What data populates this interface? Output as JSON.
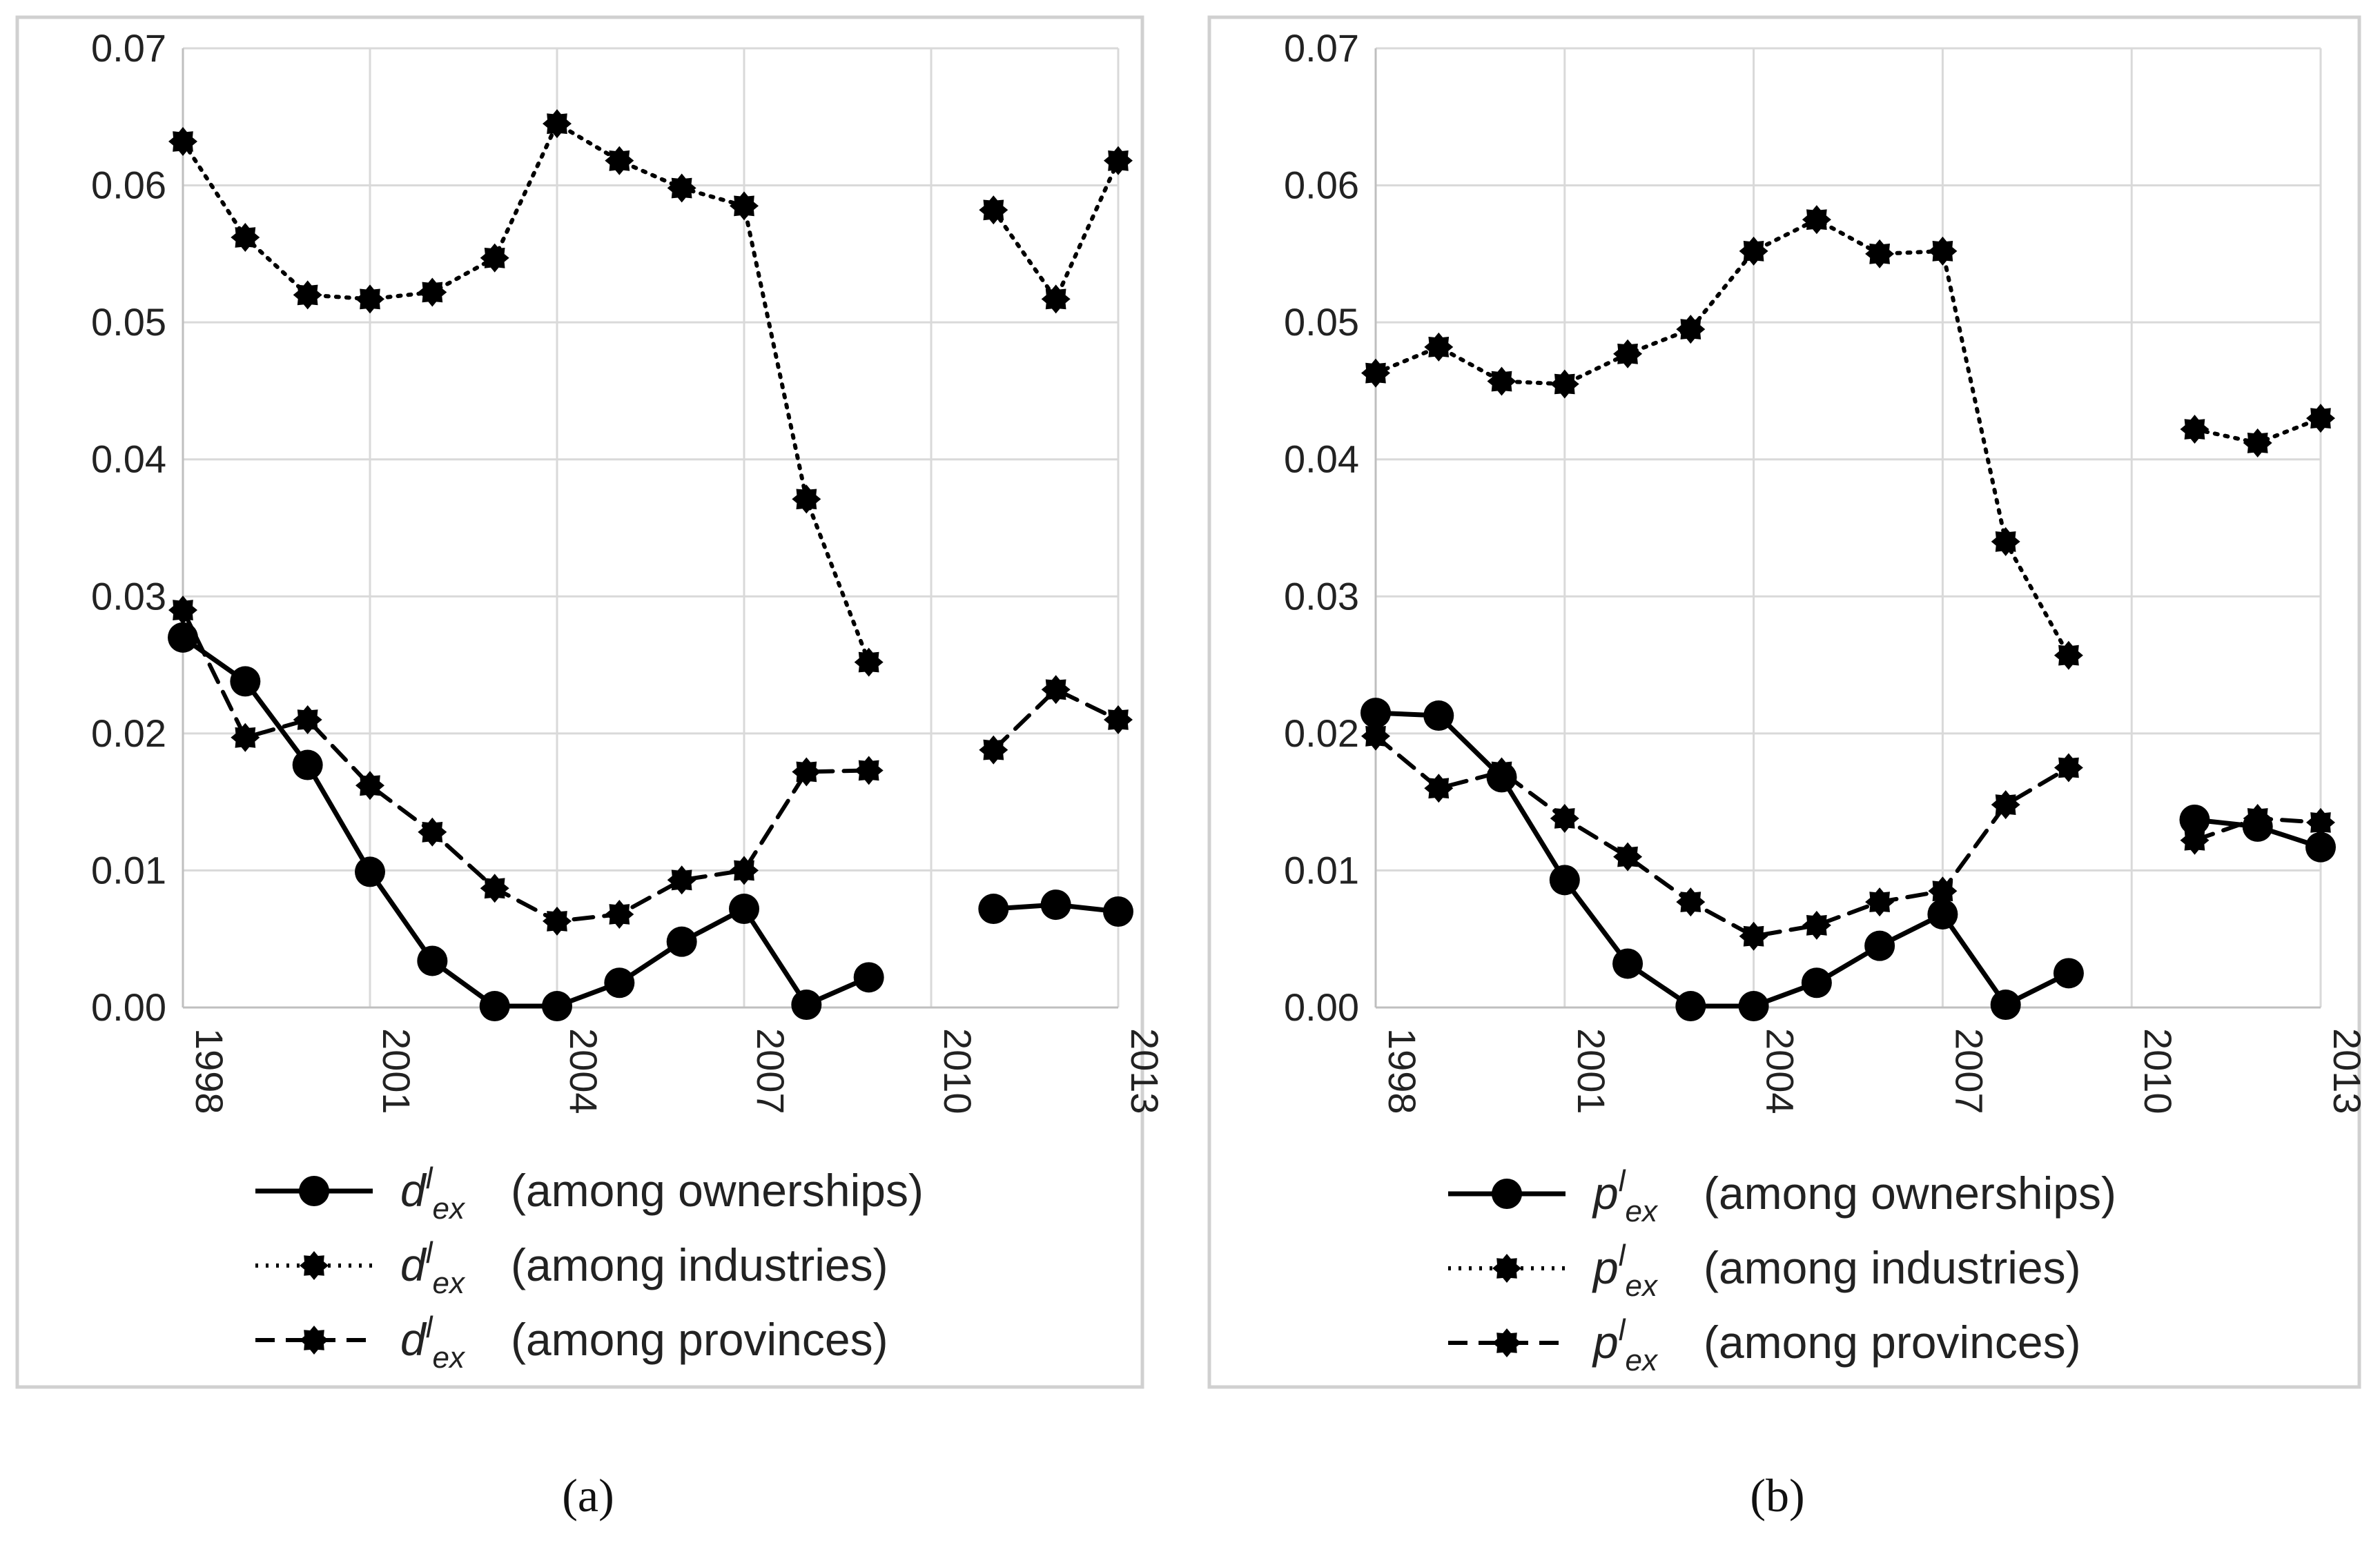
{
  "chart_data": [
    {
      "type": "line",
      "panel_label": "(a)",
      "x": [
        1998,
        1999,
        2000,
        2001,
        2002,
        2003,
        2004,
        2005,
        2006,
        2007,
        2008,
        2009,
        2010,
        2011,
        2012,
        2013
      ],
      "x_ticks": [
        "1998",
        "2001",
        "2004",
        "2007",
        "2010",
        "2013"
      ],
      "y_ticks": [
        "0.00",
        "0.01",
        "0.02",
        "0.03",
        "0.04",
        "0.05",
        "0.06",
        "0.07"
      ],
      "ylim": [
        0,
        0.07
      ],
      "xlim": [
        1998,
        2013
      ],
      "grid": true,
      "legend_position": "bottom",
      "series": [
        {
          "symbol": "d",
          "superscript": "l",
          "subscript": "ex",
          "name": "(among ownerships)",
          "style": "solid",
          "marker": "circle",
          "values": [
            0.027,
            0.0238,
            0.0177,
            0.0099,
            0.0034,
            0.0001,
            0.0001,
            0.0018,
            0.0048,
            0.0072,
            0.0002,
            0.0022,
            null,
            0.0072,
            0.0075,
            0.007
          ]
        },
        {
          "symbol": "d",
          "superscript": "l",
          "subscript": "ex",
          "name": "(among industries)",
          "style": "dotted",
          "marker": "gear",
          "values": [
            0.0632,
            0.0562,
            0.052,
            0.0517,
            0.0522,
            0.0547,
            0.0645,
            0.0618,
            0.0598,
            0.0585,
            0.0371,
            0.0252,
            null,
            0.0582,
            0.0517,
            0.0618
          ]
        },
        {
          "symbol": "d",
          "superscript": "l",
          "subscript": "ex",
          "name": "(among provinces)",
          "style": "dashed",
          "marker": "gear",
          "values": [
            0.029,
            0.0197,
            0.021,
            0.0162,
            0.0128,
            0.0087,
            0.0063,
            0.0068,
            0.0093,
            0.01,
            0.0172,
            0.0173,
            null,
            0.0188,
            0.0232,
            0.021
          ]
        }
      ]
    },
    {
      "type": "line",
      "panel_label": "(b)",
      "x": [
        1998,
        1999,
        2000,
        2001,
        2002,
        2003,
        2004,
        2005,
        2006,
        2007,
        2008,
        2009,
        2010,
        2011,
        2012,
        2013
      ],
      "x_ticks": [
        "1998",
        "2001",
        "2004",
        "2007",
        "2010",
        "2013"
      ],
      "y_ticks": [
        "0.00",
        "0.01",
        "0.02",
        "0.03",
        "0.04",
        "0.05",
        "0.06",
        "0.07"
      ],
      "ylim": [
        0,
        0.07
      ],
      "xlim": [
        1998,
        2013
      ],
      "grid": true,
      "legend_position": "bottom",
      "series": [
        {
          "symbol": "p",
          "superscript": "l",
          "subscript": "ex",
          "name": "(among ownerships)",
          "style": "solid",
          "marker": "circle",
          "values": [
            0.0215,
            0.0213,
            0.0168,
            0.0093,
            0.0032,
            0.0001,
            0.0001,
            0.0018,
            0.0045,
            0.0068,
            0.0002,
            0.0025,
            null,
            0.0137,
            0.0132,
            0.0117
          ]
        },
        {
          "symbol": "p",
          "superscript": "l",
          "subscript": "ex",
          "name": "(among industries)",
          "style": "dotted",
          "marker": "gear",
          "values": [
            0.0463,
            0.0482,
            0.0457,
            0.0455,
            0.0477,
            0.0495,
            0.0552,
            0.0575,
            0.055,
            0.0552,
            0.034,
            0.0257,
            null,
            0.0422,
            0.0412,
            0.043
          ]
        },
        {
          "symbol": "p",
          "superscript": "l",
          "subscript": "ex",
          "name": "(among provinces)",
          "style": "dashed",
          "marker": "gear",
          "values": [
            0.0198,
            0.016,
            0.0172,
            0.0138,
            0.011,
            0.0077,
            0.0052,
            0.006,
            0.0077,
            0.0085,
            0.0148,
            0.0175,
            null,
            0.0122,
            0.0138,
            0.0135
          ]
        }
      ]
    }
  ]
}
